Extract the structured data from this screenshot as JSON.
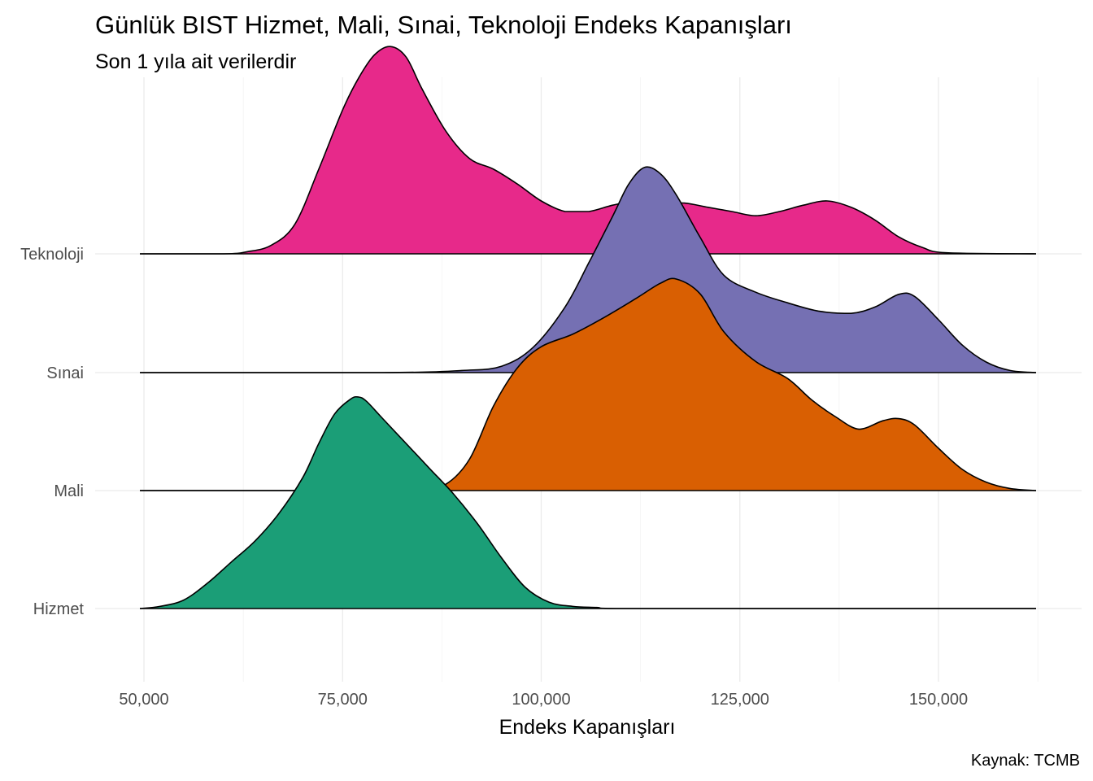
{
  "title": "Günlük BIST Hizmet, Mali, Sınai, Teknoloji Endeks Kapanışları",
  "subtitle": "Son 1 yıla ait verilerdir",
  "caption": "Kaynak: TCMB",
  "chart_data": {
    "type": "area",
    "subtype": "ridgeline-density",
    "xlabel": "Endeks Kapanışları",
    "ylabel": "",
    "xlim": [
      49000,
      163000
    ],
    "x_ticks": [
      50000,
      75000,
      100000,
      125000,
      150000
    ],
    "x_tick_labels": [
      "50,000",
      "75,000",
      "100,000",
      "125,000",
      "150,000"
    ],
    "grid": true,
    "legend": "none",
    "categories": [
      "Hizmet",
      "Mali",
      "Sınai",
      "Teknoloji"
    ],
    "series": [
      {
        "name": "Hizmet",
        "color": "#1B9E77",
        "x": [
          49500,
          52000,
          55000,
          58000,
          61000,
          64000,
          67000,
          70000,
          72000,
          74000,
          76000,
          77000,
          78000,
          80000,
          83000,
          86000,
          89000,
          92000,
          95000,
          98000,
          101000,
          104000,
          107000,
          110000,
          130000,
          163000
        ],
        "density": [
          0.0,
          0.01,
          0.04,
          0.12,
          0.22,
          0.32,
          0.45,
          0.62,
          0.78,
          0.92,
          0.99,
          1.0,
          0.98,
          0.9,
          0.78,
          0.66,
          0.54,
          0.4,
          0.24,
          0.1,
          0.03,
          0.01,
          0.005,
          0.0,
          0.0,
          0.0
        ]
      },
      {
        "name": "Mali",
        "color": "#D95F02",
        "x": [
          49500,
          80000,
          85000,
          88000,
          91000,
          94000,
          97000,
          100000,
          104000,
          108000,
          112000,
          115000,
          117000,
          120000,
          123000,
          127000,
          131000,
          134000,
          137000,
          140000,
          143000,
          145000,
          147000,
          150000,
          153000,
          156000,
          159000,
          163000
        ],
        "density": [
          0.0,
          0.0,
          0.01,
          0.03,
          0.15,
          0.4,
          0.58,
          0.68,
          0.74,
          0.82,
          0.91,
          0.98,
          1.0,
          0.93,
          0.75,
          0.61,
          0.53,
          0.43,
          0.35,
          0.29,
          0.33,
          0.34,
          0.31,
          0.2,
          0.1,
          0.04,
          0.01,
          0.0
        ]
      },
      {
        "name": "Sınai",
        "color": "#7570B3",
        "x": [
          49500,
          80000,
          90000,
          95000,
          99000,
          103000,
          106000,
          109000,
          111000,
          113000,
          115000,
          117000,
          120000,
          123000,
          127000,
          131000,
          135000,
          139000,
          142000,
          145000,
          147000,
          150000,
          153000,
          156000,
          159000,
          163000
        ],
        "density": [
          0.0,
          0.0,
          0.01,
          0.03,
          0.12,
          0.31,
          0.52,
          0.74,
          0.89,
          0.97,
          0.94,
          0.84,
          0.64,
          0.46,
          0.38,
          0.33,
          0.29,
          0.28,
          0.31,
          0.37,
          0.36,
          0.25,
          0.13,
          0.05,
          0.01,
          0.0
        ]
      },
      {
        "name": "Teknoloji",
        "color": "#E7298A",
        "x": [
          49500,
          60000,
          63000,
          66000,
          69000,
          72000,
          75000,
          77000,
          79000,
          81000,
          83000,
          85000,
          88000,
          91000,
          94000,
          97000,
          100000,
          103000,
          106000,
          109000,
          112000,
          115000,
          118000,
          121000,
          124000,
          127000,
          130000,
          133000,
          136000,
          139000,
          142000,
          145000,
          148000,
          151000,
          163000
        ],
        "density": [
          0.0,
          0.0,
          0.01,
          0.04,
          0.14,
          0.4,
          0.68,
          0.83,
          0.94,
          0.98,
          0.93,
          0.78,
          0.58,
          0.45,
          0.4,
          0.33,
          0.25,
          0.2,
          0.2,
          0.23,
          0.25,
          0.24,
          0.24,
          0.22,
          0.2,
          0.18,
          0.2,
          0.23,
          0.25,
          0.22,
          0.16,
          0.08,
          0.03,
          0.005,
          0.0
        ]
      }
    ]
  }
}
